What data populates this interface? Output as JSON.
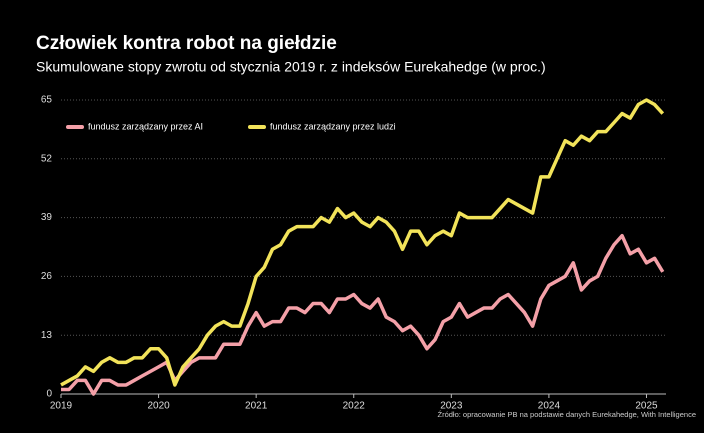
{
  "chart_data": {
    "type": "line",
    "title": "Człowiek kontra robot na giełdzie",
    "subtitle": "Skumulowane stopy zwrotu od stycznia 2019 r. z indeksów Eurekahedge (w proc.)",
    "source": "Źródło: opracowanie PB na podstawie danych Eurekahedge, With Intelligence",
    "x": [
      2019,
      2019.083,
      2019.167,
      2019.25,
      2019.333,
      2019.417,
      2019.5,
      2019.583,
      2019.667,
      2019.75,
      2019.833,
      2019.917,
      2020,
      2020.083,
      2020.167,
      2020.25,
      2020.333,
      2020.417,
      2020.5,
      2020.583,
      2020.667,
      2020.75,
      2020.833,
      2020.917,
      2021,
      2021.083,
      2021.167,
      2021.25,
      2021.333,
      2021.417,
      2021.5,
      2021.583,
      2021.667,
      2021.75,
      2021.833,
      2021.917,
      2022,
      2022.083,
      2022.167,
      2022.25,
      2022.333,
      2022.417,
      2022.5,
      2022.583,
      2022.667,
      2022.75,
      2022.833,
      2022.917,
      2023,
      2023.083,
      2023.167,
      2023.25,
      2023.333,
      2023.417,
      2023.5,
      2023.583,
      2023.667,
      2023.75,
      2023.833,
      2023.917,
      2024,
      2024.083,
      2024.167,
      2024.25,
      2024.333,
      2024.417,
      2024.5,
      2024.583,
      2024.667,
      2024.75,
      2024.833,
      2024.917,
      2025,
      2025.083,
      2025.167
    ],
    "series": [
      {
        "name": "fundusz zarządzany przez AI",
        "color": "#f4a0a8",
        "values": [
          1,
          1,
          3,
          3,
          0,
          3,
          3,
          2,
          2,
          3,
          4,
          5,
          6,
          7,
          3,
          5,
          7,
          8,
          8,
          8,
          11,
          11,
          11,
          15,
          18,
          15,
          16,
          16,
          19,
          19,
          18,
          20,
          20,
          18,
          21,
          21,
          22,
          20,
          19,
          21,
          17,
          16,
          14,
          15,
          13,
          10,
          12,
          16,
          17,
          20,
          17,
          18,
          19,
          19,
          21,
          22,
          20,
          18,
          15,
          21,
          24,
          25,
          26,
          29,
          23,
          25,
          26,
          30,
          33,
          35,
          31,
          32,
          29,
          30,
          27
        ]
      },
      {
        "name": "fundusz zarządzany przez ludzi",
        "color": "#f2e35a",
        "values": [
          2,
          3,
          4,
          6,
          5,
          7,
          8,
          7,
          7,
          8,
          8,
          10,
          10,
          8,
          2,
          6,
          8,
          10,
          13,
          15,
          16,
          15,
          15,
          20,
          26,
          28,
          32,
          33,
          36,
          37,
          37,
          37,
          39,
          38,
          41,
          39,
          40,
          38,
          37,
          39,
          38,
          36,
          32,
          36,
          36,
          33,
          35,
          36,
          35,
          40,
          39,
          39,
          39,
          39,
          41,
          43,
          42,
          41,
          40,
          48,
          48,
          52,
          56,
          55,
          57,
          56,
          58,
          58,
          60,
          62,
          61,
          64,
          65,
          64,
          62
        ]
      }
    ],
    "xlim": [
      2019,
      2025.2
    ],
    "xticks": [
      2019,
      2020,
      2021,
      2022,
      2023,
      2024,
      2025
    ],
    "ylim": [
      0,
      65
    ],
    "yticks": [
      0,
      13,
      26,
      39,
      52,
      65
    ],
    "grid": true
  }
}
